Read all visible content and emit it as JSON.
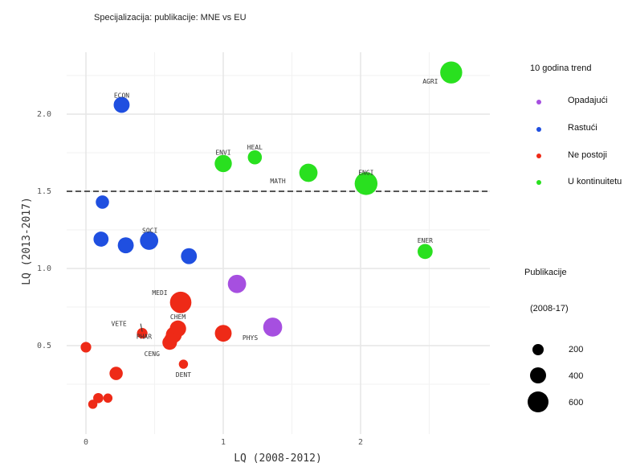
{
  "chart_data": {
    "type": "scatter",
    "title": "Specijalizacija: publikacije: MNE vs EU",
    "xlabel": "LQ (2008-2012)",
    "ylabel": "LQ (2013-2017)",
    "x_ticks": [
      "0",
      "1",
      "2"
    ],
    "y_ticks": [
      "0.5",
      "1.0",
      "1.5",
      "2.0"
    ],
    "xlim": [
      -0.15,
      2.75
    ],
    "ylim": [
      -0.1,
      2.38
    ],
    "reference_line_y": 1.5,
    "colors": {
      "Opadajući": "#a64fe0",
      "Rastući": "#1f4fe0",
      "Ne postoji": "#ee2a17",
      "U kontinuitetu": "#29e01f"
    },
    "points": [
      {
        "label": "AGRI",
        "x": 2.66,
        "y": 2.27,
        "size": 620,
        "trend": "U kontinuitetu"
      },
      {
        "label": "ECON",
        "x": 0.26,
        "y": 2.06,
        "size": 260,
        "trend": "Rastući"
      },
      {
        "label": "ENVI",
        "x": 1.0,
        "y": 1.68,
        "size": 320,
        "trend": "U kontinuitetu"
      },
      {
        "label": "HEAL",
        "x": 1.23,
        "y": 1.72,
        "size": 180,
        "trend": "U kontinuitetu"
      },
      {
        "label": "MATH",
        "x": 1.62,
        "y": 1.62,
        "size": 380,
        "trend": "U kontinuitetu"
      },
      {
        "label": "ENGI",
        "x": 2.04,
        "y": 1.55,
        "size": 680,
        "trend": "U kontinuitetu"
      },
      {
        "label": "",
        "x": 0.12,
        "y": 1.43,
        "size": 150,
        "trend": "Rastući"
      },
      {
        "label": "",
        "x": 0.11,
        "y": 1.19,
        "size": 220,
        "trend": "Rastući"
      },
      {
        "label": "",
        "x": 0.29,
        "y": 1.15,
        "size": 260,
        "trend": "Rastući"
      },
      {
        "label": "SOCI",
        "x": 0.46,
        "y": 1.18,
        "size": 380,
        "trend": "Rastući"
      },
      {
        "label": "",
        "x": 0.75,
        "y": 1.08,
        "size": 260,
        "trend": "Rastući"
      },
      {
        "label": "ENER",
        "x": 2.47,
        "y": 1.11,
        "size": 220,
        "trend": "U kontinuitetu"
      },
      {
        "label": "",
        "x": 1.1,
        "y": 0.9,
        "size": 380,
        "trend": "Opadajući"
      },
      {
        "label": "MEDI",
        "x": 0.69,
        "y": 0.78,
        "size": 580,
        "trend": "Ne postoji"
      },
      {
        "label": "CHEM",
        "x": 0.67,
        "y": 0.61,
        "size": 280,
        "trend": "Ne postoji"
      },
      {
        "label": "PHAR",
        "x": 0.64,
        "y": 0.57,
        "size": 260,
        "trend": "Ne postoji"
      },
      {
        "label": "CENG",
        "x": 0.61,
        "y": 0.52,
        "size": 200,
        "trend": "Ne postoji"
      },
      {
        "label": "",
        "x": 0.62,
        "y": 0.54,
        "size": 160,
        "trend": "Ne postoji"
      },
      {
        "label": "VETE",
        "x": 0.41,
        "y": 0.58,
        "size": 70,
        "trend": "Ne postoji"
      },
      {
        "label": "",
        "x": 1.0,
        "y": 0.58,
        "size": 300,
        "trend": "Ne postoji"
      },
      {
        "label": "PHYS",
        "x": 1.36,
        "y": 0.62,
        "size": 420,
        "trend": "Opadajući"
      },
      {
        "label": "DENT",
        "x": 0.71,
        "y": 0.38,
        "size": 40,
        "trend": "Ne postoji"
      },
      {
        "label": "",
        "x": 0.0,
        "y": 0.49,
        "size": 70,
        "trend": "Ne postoji"
      },
      {
        "label": "",
        "x": 0.22,
        "y": 0.32,
        "size": 150,
        "trend": "Ne postoji"
      },
      {
        "label": "",
        "x": 0.09,
        "y": 0.16,
        "size": 60,
        "trend": "Ne postoji"
      },
      {
        "label": "",
        "x": 0.16,
        "y": 0.16,
        "size": 40,
        "trend": "Ne postoji"
      },
      {
        "label": "",
        "x": 0.05,
        "y": 0.12,
        "size": 40,
        "trend": "Ne postoji"
      }
    ]
  },
  "legend": {
    "trend_title": "10 godina trend",
    "trend_items": [
      {
        "label": "Opadajući",
        "color": "#a64fe0"
      },
      {
        "label": "Rastući",
        "color": "#1f4fe0"
      },
      {
        "label": "Ne postoji",
        "color": "#ee2a17"
      },
      {
        "label": "U kontinuitetu",
        "color": "#29e01f"
      }
    ],
    "size_title": "Publikacije",
    "size_subtitle": "(2008-17)",
    "size_items": [
      {
        "label": "200",
        "value": 200
      },
      {
        "label": "400",
        "value": 400
      },
      {
        "label": "600",
        "value": 600
      }
    ]
  }
}
